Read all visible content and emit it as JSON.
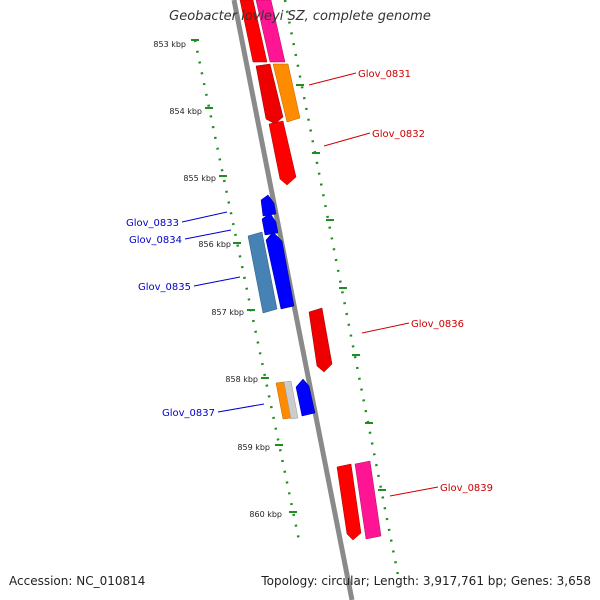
{
  "title": "Geobacter lovleyi SZ, complete genome",
  "footer": {
    "accession": "Accession: NC_010814",
    "stats": "Topology: circular; Length: 3,917,761 bp; Genes: 3,658"
  },
  "colors": {
    "forward_label": "#cc0000",
    "reverse_label": "#0000cc",
    "ruler": "#228b22",
    "backbone": "#888888"
  },
  "tick_labels": [
    "853 kbp",
    "854 kbp",
    "855 kbp",
    "856 kbp",
    "857 kbp",
    "858 kbp",
    "859 kbp",
    "860 kbp"
  ],
  "gene_labels": [
    {
      "name": "Glov_0831",
      "strand": "forward"
    },
    {
      "name": "Glov_0832",
      "strand": "forward"
    },
    {
      "name": "Glov_0833",
      "strand": "reverse"
    },
    {
      "name": "Glov_0834",
      "strand": "reverse"
    },
    {
      "name": "Glov_0835",
      "strand": "reverse"
    },
    {
      "name": "Glov_0836",
      "strand": "forward"
    },
    {
      "name": "Glov_0837",
      "strand": "reverse"
    },
    {
      "name": "Glov_0839",
      "strand": "forward"
    }
  ]
}
